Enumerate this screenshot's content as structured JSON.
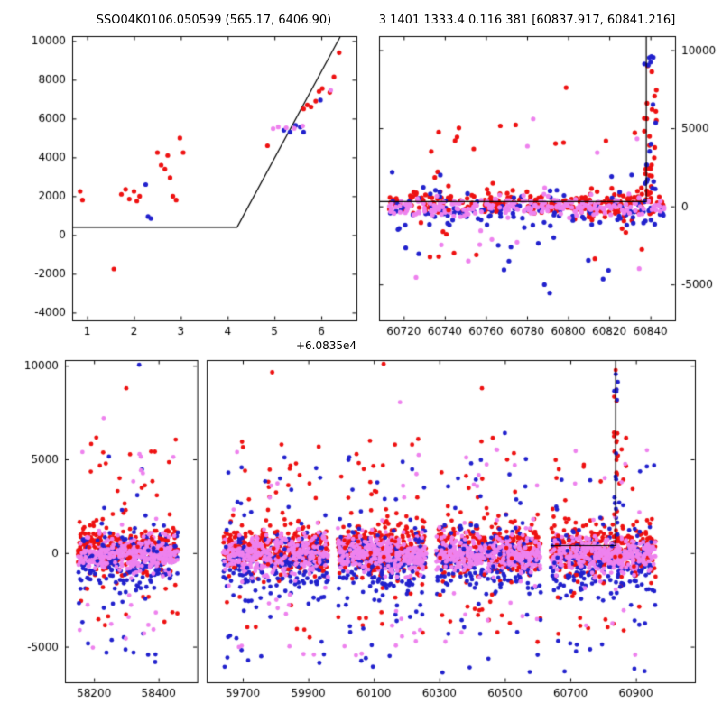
{
  "figure": {
    "background": "#ffffff",
    "colors": {
      "red": "#ee1111",
      "blue": "#2121cd",
      "violet": "#ee82ee",
      "line": "#000000",
      "frame": "#000000"
    }
  },
  "chart_data": [
    {
      "type": "scatter",
      "panel": "top-left",
      "title": "SSO04K0106.050599 (565.17, 6406.90)",
      "xlabel_offset": "+6.0835e4",
      "xlim": [
        0.68,
        6.75
      ],
      "ylim": [
        -4400,
        10250
      ],
      "x_ticks": [
        1,
        2,
        3,
        4,
        5,
        6
      ],
      "y_ticks": [
        -4000,
        -2000,
        0,
        2000,
        4000,
        6000,
        8000,
        10000
      ],
      "fit_line": [
        [
          0.68,
          400
        ],
        [
          4.2,
          400
        ],
        [
          6.41,
          10250
        ]
      ],
      "series": [
        {
          "name": "red",
          "color": "red",
          "points": [
            [
              0.85,
              2250
            ],
            [
              0.9,
              1800
            ],
            [
              1.57,
              -1750
            ],
            [
              1.73,
              2100
            ],
            [
              1.82,
              2350
            ],
            [
              1.9,
              1850
            ],
            [
              2.0,
              2250
            ],
            [
              2.06,
              1750
            ],
            [
              2.12,
              2000
            ],
            [
              2.5,
              4250
            ],
            [
              2.58,
              3600
            ],
            [
              2.66,
              3400
            ],
            [
              2.72,
              4100
            ],
            [
              2.77,
              2950
            ],
            [
              2.83,
              2000
            ],
            [
              2.9,
              1800
            ],
            [
              2.98,
              5000
            ],
            [
              3.05,
              4250
            ],
            [
              4.85,
              4600
            ],
            [
              5.62,
              6500
            ],
            [
              5.7,
              6700
            ],
            [
              5.78,
              6600
            ],
            [
              5.88,
              6900
            ],
            [
              5.95,
              7400
            ],
            [
              6.02,
              7550
            ],
            [
              6.18,
              7350
            ],
            [
              6.27,
              8150
            ],
            [
              6.38,
              9400
            ]
          ]
        },
        {
          "name": "blue",
          "color": "blue",
          "points": [
            [
              2.25,
              2600
            ],
            [
              2.3,
              950
            ],
            [
              2.36,
              850
            ],
            [
              5.2,
              5400
            ],
            [
              5.33,
              5300
            ],
            [
              5.45,
              5650
            ],
            [
              5.55,
              5560
            ],
            [
              5.62,
              5300
            ],
            [
              5.98,
              6950
            ]
          ]
        },
        {
          "name": "violet",
          "color": "violet",
          "points": [
            [
              4.97,
              5480
            ],
            [
              5.08,
              5570
            ],
            [
              5.25,
              5530
            ],
            [
              5.42,
              5500
            ],
            [
              5.6,
              5620
            ],
            [
              6.2,
              7460
            ]
          ]
        }
      ]
    },
    {
      "type": "scatter",
      "panel": "top-right",
      "title": "3 1401 1333.4 0.116 381 [60837.917, 60841.216]",
      "xlim": [
        60708,
        60852
      ],
      "ylim": [
        -7300,
        10900
      ],
      "x_ticks": [
        60720,
        60740,
        60760,
        60780,
        60800,
        60820,
        60840
      ],
      "y_ticks": [
        -5000,
        0,
        5000,
        10000
      ],
      "y_labels_side": "right",
      "fit_line": [
        [
          60708,
          300
        ],
        [
          60838,
          300
        ],
        [
          60838,
          10900
        ]
      ],
      "clusters": [
        {
          "color": "red",
          "n": 260,
          "x": [
            60713,
            60847
          ],
          "dist": "normal",
          "mean": 180,
          "sigma": 430
        },
        {
          "color": "blue",
          "n": 120,
          "x": [
            60713,
            60847
          ],
          "dist": "normal",
          "mean": -380,
          "sigma": 520
        },
        {
          "color": "violet",
          "n": 210,
          "x": [
            60713,
            60847
          ],
          "dist": "normal",
          "mean": -60,
          "sigma": 340
        },
        {
          "color": "red",
          "n": 26,
          "x": [
            60714,
            60846
          ],
          "dist": "uniform",
          "range": [
            -3400,
            6800
          ]
        },
        {
          "color": "blue",
          "n": 22,
          "x": [
            60714,
            60846
          ],
          "dist": "uniform",
          "range": [
            -5600,
            2800
          ]
        },
        {
          "color": "violet",
          "n": 13,
          "x": [
            60718,
            60842
          ],
          "dist": "uniform",
          "range": [
            -4600,
            5400
          ]
        },
        {
          "color": "red",
          "n": 24,
          "x": [
            60837,
            60843
          ],
          "dist": "uniform",
          "range": [
            500,
            9900
          ]
        },
        {
          "color": "blue",
          "n": 16,
          "x": [
            60837,
            60843
          ],
          "dist": "uniform",
          "range": [
            800,
            9600
          ]
        }
      ],
      "extra_points": [
        {
          "color": "red",
          "x": 60799,
          "y": 7600
        },
        {
          "color": "violet",
          "x": 60783,
          "y": 5600
        },
        {
          "color": "red",
          "x": 60767,
          "y": 5150
        },
        {
          "color": "red",
          "x": 60737,
          "y": 4750
        },
        {
          "color": "blue",
          "x": 60791,
          "y": -5550
        },
        {
          "color": "blue",
          "x": 60817,
          "y": -4650
        },
        {
          "color": "violet",
          "x": 60726,
          "y": -4550
        },
        {
          "color": "red",
          "x": 60813,
          "y": -3350
        },
        {
          "color": "violet",
          "x": 60757,
          "y": -2450
        }
      ]
    },
    {
      "type": "scatter",
      "panel": "bottom",
      "xlim_segments": [
        [
          58110,
          58520
        ],
        [
          59590,
          61080
        ]
      ],
      "segment_fractions": [
        [
          0.0,
          0.21
        ],
        [
          0.225,
          1.0
        ]
      ],
      "ylim": [
        -6900,
        10300
      ],
      "x_ticks": [
        58200,
        58400,
        59700,
        59900,
        60100,
        60300,
        60500,
        60700,
        60900
      ],
      "y_ticks": [
        -5000,
        0,
        5000,
        10000
      ],
      "fit_line": [
        [
          60640,
          400
        ],
        [
          60838,
          400
        ],
        [
          60838,
          10300
        ]
      ],
      "groups": [
        [
          58150,
          58460
        ],
        [
          59640,
          59960
        ],
        [
          59990,
          60260
        ],
        [
          60290,
          60610
        ],
        [
          60640,
          60960
        ]
      ],
      "group_profile": [
        {
          "color": "red",
          "n": 330,
          "dist": "normal",
          "mean": 200,
          "sigma": 650
        },
        {
          "color": "blue",
          "n": 190,
          "dist": "normal",
          "mean": -550,
          "sigma": 850
        },
        {
          "color": "violet",
          "n": 300,
          "dist": "normal",
          "mean": -50,
          "sigma": 480
        },
        {
          "color": "red",
          "n": 45,
          "dist": "uniform",
          "range": [
            -4800,
            6200
          ]
        },
        {
          "color": "blue",
          "n": 38,
          "dist": "uniform",
          "range": [
            -6400,
            5200
          ]
        },
        {
          "color": "violet",
          "n": 26,
          "dist": "uniform",
          "range": [
            -5600,
            5600
          ]
        }
      ],
      "spike": {
        "x": [
          60833,
          60845
        ],
        "entries": [
          {
            "color": "red",
            "n": 22,
            "range": [
              600,
              10100
            ]
          },
          {
            "color": "blue",
            "n": 14,
            "range": [
              900,
              9800
            ]
          }
        ]
      },
      "extra_points": [
        {
          "color": "blue",
          "x": 58340,
          "y": 10050
        },
        {
          "color": "red",
          "x": 59790,
          "y": 9650
        },
        {
          "color": "red",
          "x": 60130,
          "y": 10100
        },
        {
          "color": "violet",
          "x": 60180,
          "y": 8050
        },
        {
          "color": "red",
          "x": 60430,
          "y": 8800
        },
        {
          "color": "violet",
          "x": 58230,
          "y": 7200
        },
        {
          "color": "red",
          "x": 58300,
          "y": 8800
        },
        {
          "color": "blue",
          "x": 60500,
          "y": 6400
        }
      ]
    }
  ]
}
